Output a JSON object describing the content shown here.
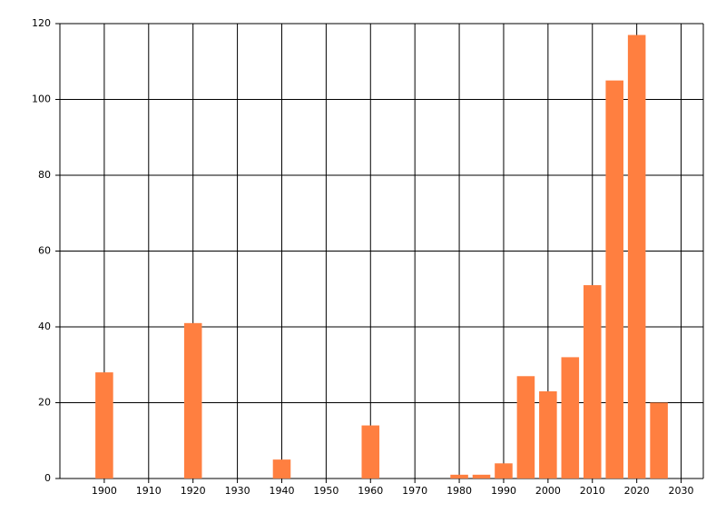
{
  "chart_data": {
    "type": "bar",
    "x": [
      1900,
      1920,
      1940,
      1960,
      1980,
      1985,
      1990,
      1995,
      2000,
      2005,
      2010,
      2015,
      2020,
      2025
    ],
    "values": [
      28,
      41,
      5,
      14,
      1,
      1,
      4,
      27,
      23,
      32,
      51,
      105,
      117,
      20
    ],
    "color": "#ff7f40",
    "xlim": [
      1890,
      2035
    ],
    "xticks": [
      1900,
      1910,
      1920,
      1930,
      1940,
      1950,
      1960,
      1970,
      1980,
      1990,
      2000,
      2010,
      2020,
      2030
    ],
    "ylim": [
      0,
      120
    ],
    "yticks": [
      0,
      20,
      40,
      60,
      80,
      100,
      120
    ],
    "grid": true
  }
}
